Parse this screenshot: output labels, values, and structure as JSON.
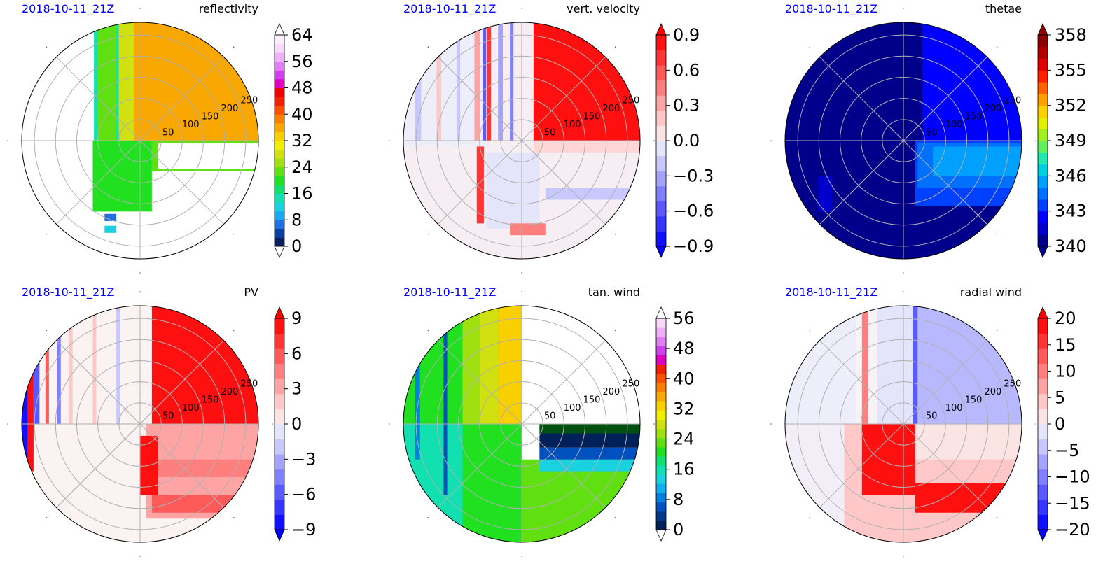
{
  "chart_data": [
    {
      "type": "heatmap",
      "projection": "polar",
      "date_label": "2018-10-11_21Z",
      "title": "reflectivity",
      "r_ticks": [
        50,
        100,
        150,
        200,
        250
      ],
      "show_r_labels": true,
      "colorbar": {
        "ticks": [
          "0",
          "8",
          "16",
          "24",
          "32",
          "40",
          "48",
          "56",
          "64"
        ],
        "extend": "both",
        "extend_min_color": "#ffffff",
        "extend_max_color": "#ffffff",
        "colors": [
          "#0a1e5a",
          "#0d3fa0",
          "#1f6fe0",
          "#1aa8f0",
          "#19d2e0",
          "#12e0b0",
          "#10e070",
          "#20e020",
          "#60e010",
          "#a0e010",
          "#d0e010",
          "#f0f000",
          "#f8d000",
          "#f8a800",
          "#f88000",
          "#f85000",
          "#f02000",
          "#f00000",
          "#e000c0",
          "#d040f0",
          "#e080f8",
          "#f0b0f8",
          "#f8d8fb",
          "#fdf0fd"
        ]
      },
      "base_color": "#ffffff",
      "regions": [
        {
          "shape": "rect",
          "x0": -0.39,
          "x1": -0.09,
          "y0": -0.0,
          "y1": 1.0,
          "color": "#12e0b0"
        },
        {
          "shape": "rect",
          "x0": -0.36,
          "x1": -0.2,
          "y0": -0.0,
          "y1": 1.0,
          "color": "#60e010"
        },
        {
          "shape": "rect",
          "x0": -0.18,
          "x1": 0.0,
          "y0": 0.0,
          "y1": 1.0,
          "color": "#d0e010"
        },
        {
          "shape": "rect",
          "x0": -0.05,
          "x1": 0.0,
          "y0": 0.0,
          "y1": 1.0,
          "color": "#f8a800"
        },
        {
          "shape": "rect",
          "x0": 0.0,
          "x1": 1.0,
          "y0": 0.0,
          "y1": 1.0,
          "color": "#f8a800"
        },
        {
          "shape": "rect",
          "x0": 0.1,
          "x1": 1.0,
          "y0": -0.26,
          "y1": 0.0,
          "color": "#60e010"
        },
        {
          "shape": "rect",
          "x0": 0.15,
          "x1": 1.0,
          "y0": -0.24,
          "y1": -0.02,
          "color": "#ffffff"
        },
        {
          "shape": "rect",
          "x0": -0.4,
          "x1": 0.1,
          "y0": -0.6,
          "y1": 0.0,
          "color": "#20e020"
        },
        {
          "shape": "rect",
          "x0": -0.3,
          "x1": 1.0,
          "y0": -0.68,
          "y1": -0.62,
          "color": "#1f6fe0"
        },
        {
          "shape": "rect",
          "x0": -0.3,
          "x1": 1.0,
          "y0": -0.78,
          "y1": -0.72,
          "color": "#19d2e0"
        },
        {
          "shape": "rect",
          "x0": -0.2,
          "x1": 1.0,
          "y0": -0.88,
          "y1": -0.84,
          "color": "#0d3fa0"
        },
        {
          "shape": "rect",
          "x0": -1.0,
          "x1": -0.4,
          "y0": -1.0,
          "y1": 1.0,
          "color": "#ffffff"
        },
        {
          "shape": "rect",
          "x0": -0.2,
          "x1": 1.0,
          "y0": -1.0,
          "y1": -0.6,
          "color": "#ffffff"
        }
      ]
    },
    {
      "type": "heatmap",
      "projection": "polar",
      "date_label": "2018-10-11_21Z",
      "title": "vert. velocity",
      "r_ticks": [
        50,
        100,
        150,
        200,
        250
      ],
      "show_r_labels": true,
      "colorbar": {
        "ticks": [
          "−0.9",
          "−0.6",
          "−0.3",
          "0.0",
          "0.3",
          "0.6",
          "0.9"
        ],
        "extend": "both",
        "extend_min_color": "#0000ff",
        "extend_max_color": "#ff0000",
        "colors": [
          "#1010ff",
          "#3535ff",
          "#5a5aff",
          "#7f7fff",
          "#a4a4ff",
          "#c8c8ff",
          "#e4e4fb",
          "#fbe4e4",
          "#ffc8c8",
          "#ffa4a4",
          "#ff7f7f",
          "#ff5a5a",
          "#ff3535",
          "#ff1010"
        ]
      },
      "base_color": "#f6eef2",
      "regions": [
        {
          "shape": "rect",
          "x0": -1.0,
          "x1": -0.3,
          "y0": -0.05,
          "y1": 1.0,
          "color": "#eeeefb"
        },
        {
          "shape": "rect",
          "x0": -0.9,
          "x1": -0.85,
          "y0": 0.0,
          "y1": 1.0,
          "color": "#c8c8ff"
        },
        {
          "shape": "rect",
          "x0": -0.72,
          "x1": -0.68,
          "y0": 0.0,
          "y1": 1.0,
          "color": "#ffc8c8"
        },
        {
          "shape": "rect",
          "x0": -0.55,
          "x1": -0.52,
          "y0": 0.0,
          "y1": 1.0,
          "color": "#c8c8ff"
        },
        {
          "shape": "rect",
          "x0": -0.4,
          "x1": -0.35,
          "y0": 0.0,
          "y1": 1.0,
          "color": "#ffa4a4"
        },
        {
          "shape": "rect",
          "x0": -0.33,
          "x1": -0.3,
          "y0": 0.0,
          "y1": 1.0,
          "color": "#5a5aff"
        },
        {
          "shape": "rect",
          "x0": -0.29,
          "x1": -0.26,
          "y0": 0.0,
          "y1": 1.0,
          "color": "#ff3535"
        },
        {
          "shape": "rect",
          "x0": -0.2,
          "x1": -0.16,
          "y0": 0.0,
          "y1": 1.0,
          "color": "#a4a4ff"
        },
        {
          "shape": "rect",
          "x0": -0.1,
          "x1": -0.07,
          "y0": 0.0,
          "y1": 1.0,
          "color": "#7f7fff"
        },
        {
          "shape": "rect",
          "x0": 0.1,
          "x1": 1.0,
          "y0": 0.0,
          "y1": 1.0,
          "color": "#ff1010"
        },
        {
          "shape": "rect",
          "x0": 0.1,
          "x1": 1.0,
          "y0": -0.1,
          "y1": 0.0,
          "color": "#ffd6d6"
        },
        {
          "shape": "rect",
          "x0": 0.2,
          "x1": 1.0,
          "y0": -0.5,
          "y1": -0.4,
          "color": "#c8c8ff"
        },
        {
          "shape": "rect",
          "x0": -0.38,
          "x1": -0.32,
          "y0": -0.7,
          "y1": -0.05,
          "color": "#ff3535"
        },
        {
          "shape": "rect",
          "x0": -0.3,
          "x1": 0.15,
          "y0": -0.75,
          "y1": -0.1,
          "color": "#e4e4fb"
        },
        {
          "shape": "rect",
          "x0": -0.1,
          "x1": 0.2,
          "y0": -0.8,
          "y1": -0.7,
          "color": "#ff7f7f"
        }
      ]
    },
    {
      "type": "heatmap",
      "projection": "polar",
      "date_label": "2018-10-11_21Z",
      "title": "thetae",
      "r_ticks": [
        50,
        100,
        150,
        200,
        250
      ],
      "show_r_labels": true,
      "colorbar": {
        "ticks": [
          "340",
          "343",
          "346",
          "349",
          "352",
          "355",
          "358"
        ],
        "extend": "both",
        "extend_min_color": "#00008b",
        "extend_max_color": "#8b0000",
        "colors": [
          "#00008b",
          "#0000cd",
          "#0000ff",
          "#0040ff",
          "#0070ff",
          "#00a0ff",
          "#00d0e0",
          "#20e8b0",
          "#60f060",
          "#a0f020",
          "#e0f000",
          "#ffd000",
          "#ffa000",
          "#ff6000",
          "#ff2000",
          "#e00000",
          "#b00000",
          "#8b0000"
        ]
      },
      "base_color": "#00008b",
      "regions": [
        {
          "shape": "rect",
          "x0": 0.16,
          "x1": 1.0,
          "y0": 0.0,
          "y1": 1.0,
          "color": "#0000ff"
        },
        {
          "shape": "rect",
          "x0": 0.1,
          "x1": 1.0,
          "y0": -0.55,
          "y1": 0.0,
          "color": "#0040ff"
        },
        {
          "shape": "rect",
          "x0": 0.12,
          "x1": 1.0,
          "y0": -0.4,
          "y1": -0.02,
          "color": "#0070ff"
        },
        {
          "shape": "rect",
          "x0": 0.25,
          "x1": 1.0,
          "y0": -0.3,
          "y1": -0.05,
          "color": "#00a0ff"
        },
        {
          "shape": "rect",
          "x0": -0.72,
          "x1": -0.6,
          "y0": -0.6,
          "y1": -0.3,
          "color": "#0000cd"
        }
      ]
    },
    {
      "type": "heatmap",
      "projection": "polar",
      "date_label": "2018-10-11_21Z",
      "title": "PV",
      "r_ticks": [
        50,
        100,
        150,
        200,
        250
      ],
      "show_r_labels": true,
      "colorbar": {
        "ticks": [
          "−9",
          "−6",
          "−3",
          "0",
          "3",
          "6",
          "9"
        ],
        "extend": "both",
        "extend_min_color": "#0000ff",
        "extend_max_color": "#ff0000",
        "colors": [
          "#1010ff",
          "#3535ff",
          "#5a5aff",
          "#7f7fff",
          "#a4a4ff",
          "#c8c8ff",
          "#e4e4fb",
          "#fbe4e4",
          "#ffc8c8",
          "#ffa4a4",
          "#ff7f7f",
          "#ff5a5a",
          "#ff3535",
          "#ff1010"
        ]
      },
      "base_color": "#fbf2f2",
      "regions": [
        {
          "shape": "rect",
          "x0": 0.1,
          "x1": 1.0,
          "y0": 0.0,
          "y1": 1.0,
          "color": "#ff1010"
        },
        {
          "shape": "rect",
          "x0": 0.05,
          "x1": 1.0,
          "y0": -0.8,
          "y1": 0.0,
          "color": "#ffa4a4"
        },
        {
          "shape": "rect",
          "x0": 0.1,
          "x1": 1.0,
          "y0": -0.45,
          "y1": -0.3,
          "color": "#ff7f7f"
        },
        {
          "shape": "rect",
          "x0": 0.1,
          "x1": 1.0,
          "y0": -0.75,
          "y1": -0.6,
          "color": "#ff5a5a"
        },
        {
          "shape": "rect",
          "x0": 0.0,
          "x1": 0.15,
          "y0": -0.6,
          "y1": -0.1,
          "color": "#ff1010"
        },
        {
          "shape": "rect",
          "x0": -1.0,
          "x1": -0.95,
          "y0": -0.3,
          "y1": 0.4,
          "color": "#1010ff"
        },
        {
          "shape": "rect",
          "x0": -0.95,
          "x1": -0.9,
          "y0": -0.4,
          "y1": 0.5,
          "color": "#ff1010"
        },
        {
          "shape": "rect",
          "x0": -0.9,
          "x1": -0.85,
          "y0": 0.0,
          "y1": 0.7,
          "color": "#5a5aff"
        },
        {
          "shape": "rect",
          "x0": -0.8,
          "x1": -0.77,
          "y0": 0.0,
          "y1": 0.8,
          "color": "#ff5a5a"
        },
        {
          "shape": "rect",
          "x0": -0.7,
          "x1": -0.67,
          "y0": 0.0,
          "y1": 0.9,
          "color": "#7f7fff"
        },
        {
          "shape": "rect",
          "x0": -0.6,
          "x1": -0.57,
          "y0": 0.0,
          "y1": 1.0,
          "color": "#ffc8c8"
        },
        {
          "shape": "rect",
          "x0": -0.4,
          "x1": -0.37,
          "y0": 0.0,
          "y1": 1.0,
          "color": "#ffc8c8"
        },
        {
          "shape": "rect",
          "x0": -0.2,
          "x1": -0.17,
          "y0": 0.0,
          "y1": 1.0,
          "color": "#c8c8ff"
        }
      ]
    },
    {
      "type": "heatmap",
      "projection": "polar",
      "date_label": "2018-10-11_21Z",
      "title": "tan. wind",
      "r_ticks": [
        50,
        100,
        150,
        200,
        250
      ],
      "show_r_labels": true,
      "colorbar": {
        "ticks": [
          "0",
          "8",
          "16",
          "24",
          "32",
          "40",
          "48",
          "56"
        ],
        "extend": "both",
        "extend_min_color": "#ffffff",
        "extend_max_color": "#ffffff",
        "colors": [
          "#00205a",
          "#003a8a",
          "#0050c0",
          "#0080e0",
          "#10b0f0",
          "#19d2e0",
          "#12e0b0",
          "#10e070",
          "#20e020",
          "#60e010",
          "#a0e010",
          "#d0e010",
          "#f0f000",
          "#f8d000",
          "#f8a800",
          "#f88000",
          "#f85000",
          "#f02000",
          "#e000c0",
          "#d040f0",
          "#e080f8",
          "#f0b0f8",
          "#f8d8fb"
        ]
      },
      "base_color": "#ffffff",
      "regions": [
        {
          "shape": "rect",
          "x0": -1.0,
          "x1": 0.0,
          "y0": -1.0,
          "y1": 1.0,
          "color": "#20e020"
        },
        {
          "shape": "rect",
          "x0": -1.0,
          "x1": -0.5,
          "y0": -1.0,
          "y1": 0.0,
          "color": "#12e0b0"
        },
        {
          "shape": "rect",
          "x0": -0.2,
          "x1": 0.0,
          "y0": 0.0,
          "y1": 1.0,
          "color": "#f8d000"
        },
        {
          "shape": "rect",
          "x0": -0.35,
          "x1": -0.2,
          "y0": 0.0,
          "y1": 1.0,
          "color": "#d0e010"
        },
        {
          "shape": "rect",
          "x0": -0.5,
          "x1": -0.35,
          "y0": 0.0,
          "y1": 1.0,
          "color": "#a0e010"
        },
        {
          "shape": "rect",
          "x0": -0.66,
          "x1": -0.63,
          "y0": -0.6,
          "y1": 0.8,
          "color": "#0050c0"
        },
        {
          "shape": "rect",
          "x0": -0.9,
          "x1": -0.86,
          "y0": -0.3,
          "y1": 0.6,
          "color": "#0080e0"
        },
        {
          "shape": "rect",
          "x0": 0.0,
          "x1": 1.0,
          "y0": -1.0,
          "y1": -0.3,
          "color": "#60e010"
        },
        {
          "shape": "rect",
          "x0": 0.15,
          "x1": 1.0,
          "y0": -0.4,
          "y1": -0.3,
          "color": "#19d2e0"
        },
        {
          "shape": "rect",
          "x0": 0.15,
          "x1": 1.0,
          "y0": -0.3,
          "y1": -0.2,
          "color": "#0050c0"
        },
        {
          "shape": "rect",
          "x0": 0.15,
          "x1": 1.0,
          "y0": -0.2,
          "y1": -0.08,
          "color": "#00205a"
        },
        {
          "shape": "rect",
          "x0": 0.15,
          "x1": 1.0,
          "y0": -0.08,
          "y1": 0.0,
          "color": "#005010"
        },
        {
          "shape": "rect",
          "x0": 0.0,
          "x1": 1.0,
          "y0": 0.0,
          "y1": 1.0,
          "color": "#ffffff"
        }
      ]
    },
    {
      "type": "heatmap",
      "projection": "polar",
      "date_label": "2018-10-11_21Z",
      "title": "radial wind",
      "r_ticks": [
        50,
        100,
        150,
        200,
        250
      ],
      "show_r_labels": true,
      "colorbar": {
        "ticks": [
          "−20",
          "−15",
          "−10",
          "−5",
          "0",
          "5",
          "10",
          "15",
          "20"
        ],
        "extend": "both",
        "extend_min_color": "#0000ff",
        "extend_max_color": "#ff0000",
        "colors": [
          "#1010ff",
          "#3535ff",
          "#5a5aff",
          "#7f7fff",
          "#a4a4ff",
          "#c8c8ff",
          "#e4e4fb",
          "#fbe4e4",
          "#ffc8c8",
          "#ffa4a4",
          "#ff7f7f",
          "#ff5a5a",
          "#ff3535",
          "#ff1010"
        ]
      },
      "base_color": "#f6f2f6",
      "regions": [
        {
          "shape": "rect",
          "x0": 0.1,
          "x1": 1.0,
          "y0": 0.0,
          "y1": 1.0,
          "color": "#b8b8ff"
        },
        {
          "shape": "rect",
          "x0": 0.08,
          "x1": 0.12,
          "y0": 0.0,
          "y1": 1.0,
          "color": "#5a5aff"
        },
        {
          "shape": "rect",
          "x0": -0.35,
          "x1": -0.3,
          "y0": 0.0,
          "y1": 1.0,
          "color": "#ff7f7f"
        },
        {
          "shape": "rect",
          "x0": -0.22,
          "x1": 0.08,
          "y0": 0.0,
          "y1": 1.0,
          "color": "#e4e4fb"
        },
        {
          "shape": "rect",
          "x0": -1.0,
          "x1": -0.4,
          "y0": 0.0,
          "y1": 1.0,
          "color": "#eeeefb"
        },
        {
          "shape": "rect",
          "x0": -0.5,
          "x1": 1.0,
          "y0": -1.0,
          "y1": 0.0,
          "color": "#ffc8c8"
        },
        {
          "shape": "rect",
          "x0": 0.1,
          "x1": 1.0,
          "y0": -0.3,
          "y1": 0.0,
          "color": "#fbe4e4"
        },
        {
          "shape": "rect",
          "x0": -0.35,
          "x1": 0.1,
          "y0": -0.6,
          "y1": 0.0,
          "color": "#ff1010"
        },
        {
          "shape": "rect",
          "x0": 0.1,
          "x1": 1.0,
          "y0": -0.75,
          "y1": -0.5,
          "color": "#ff1010"
        },
        {
          "shape": "rect",
          "x0": -1.0,
          "x1": -0.5,
          "y0": -1.0,
          "y1": 0.0,
          "color": "#f2eef8"
        }
      ]
    }
  ]
}
